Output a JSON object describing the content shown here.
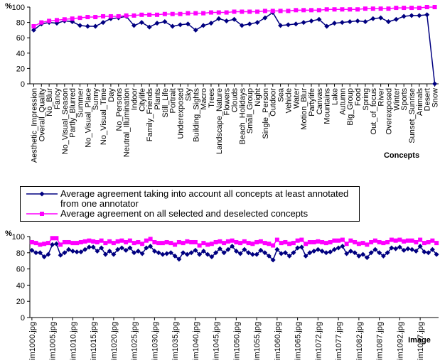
{
  "chart_data": [
    {
      "type": "line",
      "ylabel": "%",
      "xlabel": "Concepts",
      "categories": [
        "Aesthetic_Impression",
        "Overall_Quality",
        "No_Blur",
        "Fancy",
        "No_Visual_Season",
        "Partly_Blurred",
        "Summer",
        "No_Visual_Place",
        "Sunny",
        "No_Visual_Time",
        "Day",
        "No_Persons",
        "Neutral_Illumination",
        "Indoor",
        "Citylife",
        "Family_Friends",
        "Plants",
        "Still_Life",
        "Portrait",
        "Underexposed",
        "Sky",
        "Building_Sights",
        "Macro",
        "Trees",
        "Landscape_Nature",
        "Flowers",
        "Clouds",
        "Beach_Holidays",
        "Small_Group",
        "Night",
        "Single_Person",
        "Outdoor",
        "Sea",
        "Vehicle",
        "Water",
        "Motion_Blur",
        "Partylife",
        "Canvas",
        "Mountains",
        "Lake",
        "Autumn",
        "Big_Group",
        "Food",
        "Spring",
        "Out_of_focus",
        "River",
        "Overexposed",
        "Winter",
        "Sports",
        "Sunset_Sunrise",
        "Animals",
        "Desert",
        "Snow"
      ],
      "series": [
        {
          "color": "#000080",
          "marker": "diamond",
          "values": [
            70,
            78,
            80,
            79,
            82,
            81,
            76,
            75,
            75,
            80,
            85,
            86,
            88,
            76,
            80,
            74,
            79,
            81,
            75,
            77,
            78,
            70,
            76,
            79,
            85,
            82,
            84,
            76,
            78,
            80,
            86,
            93,
            76,
            77,
            78,
            80,
            82,
            84,
            75,
            79,
            80,
            81,
            82,
            81,
            85,
            86,
            81,
            84,
            88,
            89,
            89,
            90,
            0
          ]
        },
        {
          "color": "#ff00ff",
          "marker": "square",
          "values": [
            75,
            80,
            82,
            83,
            84,
            85,
            86,
            87,
            87,
            88,
            88,
            88,
            89,
            89,
            90,
            90,
            90,
            91,
            91,
            91,
            92,
            92,
            92,
            93,
            93,
            93,
            94,
            94,
            94,
            94,
            95,
            95,
            95,
            95,
            96,
            96,
            96,
            96,
            97,
            97,
            97,
            97,
            97,
            98,
            98,
            98,
            98,
            99,
            99,
            99,
            99,
            100,
            100
          ]
        }
      ],
      "ylim": [
        0,
        100
      ],
      "yticks": [
        0,
        20,
        40,
        60,
        80,
        100
      ],
      "grid": false
    },
    {
      "type": "line",
      "ylabel": "%",
      "xlabel": "Image",
      "categories": [
        "im1000.jpg",
        null,
        null,
        null,
        null,
        "im1005.jpg",
        null,
        null,
        null,
        null,
        "im1010.jpg",
        null,
        null,
        null,
        null,
        "im1015.jpg",
        null,
        null,
        null,
        null,
        "im1020.jpg",
        null,
        null,
        null,
        null,
        "im1025.jpg",
        null,
        null,
        null,
        null,
        "im1030.jpg",
        null,
        null,
        null,
        null,
        "im1035.jpg",
        null,
        null,
        null,
        null,
        "im1040.jpg",
        null,
        null,
        null,
        null,
        "im1045.jpg",
        null,
        null,
        null,
        null,
        "im1050.jpg",
        null,
        null,
        null,
        null,
        "im1055.jpg",
        null,
        null,
        null,
        null,
        "im1060.jpg",
        null,
        null,
        null,
        null,
        "im1065.jpg",
        null,
        null,
        null,
        null,
        "im1072.jpg",
        null,
        null,
        null,
        null,
        "im1077.jpg",
        null,
        null,
        null,
        null,
        "im1082.jpg",
        null,
        null,
        null,
        null,
        "im1087.jpg",
        null,
        null,
        null,
        null,
        "im1092.jpg",
        null,
        null,
        null,
        null,
        "im1097.jpg",
        null,
        null,
        null,
        null
      ],
      "series": [
        {
          "name": "Average agreement taking into account all concepts at least annotated from one annotator",
          "color": "#000080",
          "marker": "diamond",
          "values": [
            83,
            80,
            80,
            75,
            78,
            90,
            91,
            77,
            80,
            84,
            82,
            81,
            81,
            84,
            87,
            87,
            82,
            86,
            78,
            82,
            78,
            84,
            86,
            83,
            86,
            80,
            82,
            79,
            86,
            88,
            82,
            80,
            78,
            79,
            80,
            76,
            72,
            80,
            78,
            80,
            83,
            78,
            82,
            78,
            75,
            80,
            85,
            80,
            84,
            88,
            82,
            79,
            84,
            80,
            78,
            78,
            83,
            80,
            76,
            71,
            84,
            79,
            80,
            76,
            80,
            86,
            87,
            76,
            80,
            82,
            84,
            82,
            80,
            81,
            84,
            86,
            88,
            79,
            82,
            80,
            76,
            78,
            74,
            80,
            84,
            80,
            76,
            80,
            86,
            85,
            87,
            83,
            85,
            84,
            82,
            88,
            81,
            80,
            84,
            78
          ]
        },
        {
          "name": "Average agreement on all selected and deselected concepts",
          "color": "#ff00ff",
          "marker": "square",
          "values": [
            93,
            92,
            90,
            91,
            92,
            98,
            98,
            90,
            93,
            93,
            92,
            92,
            93,
            94,
            95,
            94,
            93,
            95,
            92,
            94,
            92,
            94,
            95,
            93,
            95,
            92,
            93,
            91,
            95,
            97,
            93,
            92,
            92,
            93,
            92,
            90,
            93,
            92,
            94,
            93,
            93,
            89,
            92,
            90,
            91,
            93,
            94,
            92,
            94,
            95,
            93,
            92,
            94,
            92,
            91,
            93,
            94,
            92,
            91,
            89,
            96,
            92,
            93,
            91,
            92,
            95,
            96,
            91,
            93,
            93,
            94,
            93,
            92,
            93,
            95,
            95,
            96,
            91,
            95,
            93,
            91,
            92,
            90,
            93,
            95,
            93,
            92,
            93,
            96,
            95,
            96,
            94,
            95,
            95,
            93,
            96,
            92,
            93,
            95,
            92
          ]
        }
      ],
      "ylim": [
        0,
        100
      ],
      "yticks": [
        0,
        20,
        40,
        60,
        80,
        100
      ],
      "grid": false
    }
  ]
}
